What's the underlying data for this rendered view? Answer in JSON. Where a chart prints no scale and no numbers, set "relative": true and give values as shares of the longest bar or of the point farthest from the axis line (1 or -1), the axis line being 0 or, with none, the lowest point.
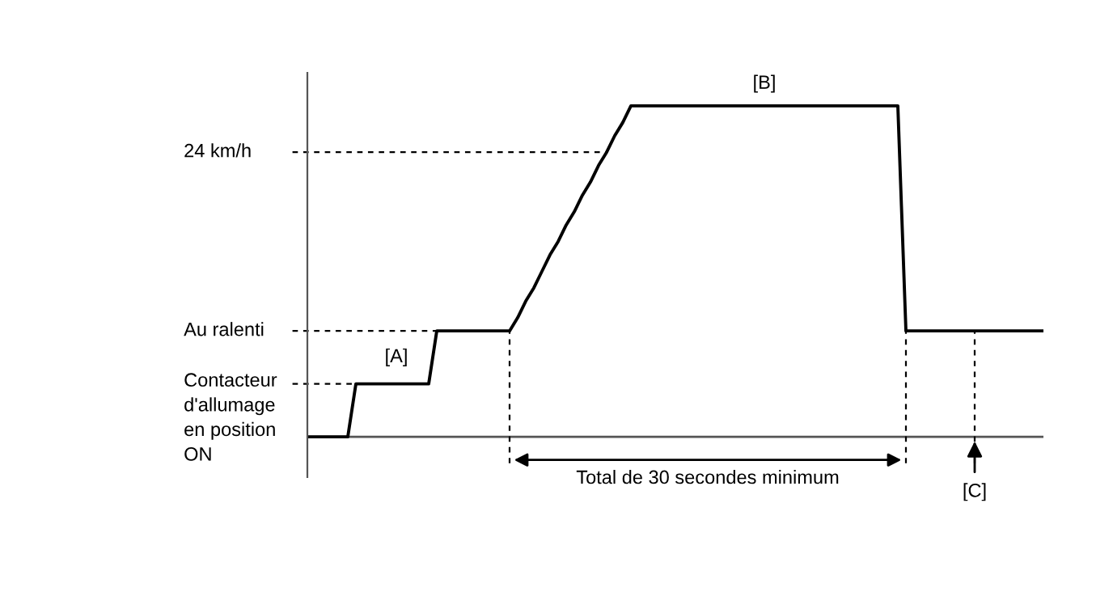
{
  "chart_data": {
    "type": "line",
    "relative": true,
    "marker": "none",
    "line_style": "solid",
    "categories": [
      null,
      null,
      null,
      null,
      null,
      null,
      null,
      null,
      null,
      null,
      null,
      null,
      null,
      null,
      null,
      null,
      null,
      null,
      null,
      null,
      null,
      null,
      null,
      null,
      null,
      null,
      null,
      null,
      null,
      null,
      null,
      null,
      null,
      null,
      null,
      null,
      null,
      null,
      null,
      null,
      null,
      null,
      null,
      null,
      null,
      null,
      null,
      null,
      null,
      null,
      null,
      null,
      null,
      null,
      null,
      null,
      null,
      null,
      null,
      null,
      null,
      null,
      null,
      null,
      null,
      null,
      null,
      null,
      null,
      null,
      null,
      null,
      null,
      null,
      null,
      null,
      null,
      null,
      null,
      null,
      null,
      null,
      null,
      null,
      null,
      null,
      null,
      null,
      null,
      null,
      null,
      null
    ],
    "series": [
      {
        "color": "#000000",
        "values": [
          0,
          0,
          0,
          0,
          0,
          0,
          0.16,
          0.16,
          0.16,
          0.16,
          0.16,
          0.16,
          0.16,
          0.16,
          0.16,
          0.16,
          0.32,
          0.32,
          0.32,
          0.32,
          0.32,
          0.32,
          0.32,
          0.32,
          0.32,
          0.32,
          0.36,
          0.41,
          0.45,
          0.5,
          0.55,
          0.59,
          0.64,
          0.68,
          0.73,
          0.77,
          0.82,
          0.86,
          0.91,
          0.95,
          1,
          1,
          1,
          1,
          1,
          1,
          1,
          1,
          1,
          1,
          1,
          1,
          1,
          1,
          1,
          1,
          1,
          1,
          1,
          1,
          1,
          1,
          1,
          1,
          1,
          1,
          1,
          1,
          1,
          1,
          1,
          1,
          1,
          1,
          0.32,
          0.32,
          0.32,
          0.32,
          0.32,
          0.32,
          0.32,
          0.32,
          0.32,
          0.32,
          0.32,
          0.32,
          0.32,
          0.32,
          0.32,
          0.32,
          0.32,
          0.32
        ]
      }
    ],
    "ref_lines": [
      {
        "axis": "y",
        "value": 0.86,
        "label": "24 km/h",
        "line_style": "dashed",
        "color": "#000000"
      },
      {
        "axis": "y",
        "value": 0.32,
        "label": "Au ralenti",
        "line_style": "dashed",
        "color": "#000000"
      },
      {
        "axis": "y",
        "value": 0.16,
        "label": "Contacteur\nd'allumage\nen position\nON",
        "line_style": "dashed",
        "color": "#000000"
      }
    ],
    "annotations": [
      "[A]",
      "[B]",
      "[C]",
      "Total de 30 secondes minimum"
    ]
  }
}
